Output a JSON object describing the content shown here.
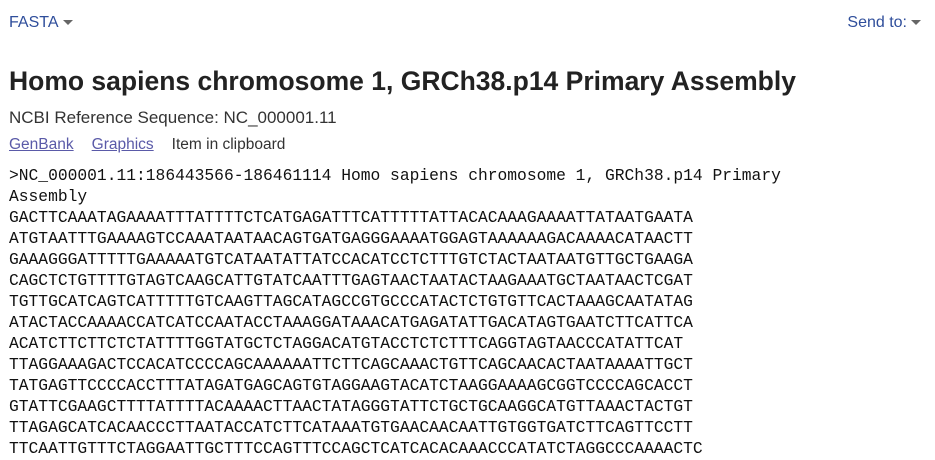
{
  "toolbar": {
    "format": "FASTA",
    "send_to": "Send to:"
  },
  "header": {
    "title": "Homo sapiens chromosome 1, GRCh38.p14 Primary Assembly",
    "subtitle": "NCBI Reference Sequence: NC_000001.11",
    "links": [
      "GenBank",
      "Graphics"
    ],
    "clipboard": "Item in clipboard"
  },
  "sequence": {
    "header": ">NC_000001.11:186443566-186461114 Homo sapiens chromosome 1, GRCh38.p14 Primary Assembly",
    "lines": [
      "GACTTCAAATAGAAAATTTATTTTCTCATGAGATTTCATTTTTATTACACAAAGAAAATTATAATGAATA",
      "ATGTAATTTGAAAAGTCCAAATAATAACAGTGATGAGGGAAAATGGAGTAAAAAAGACAAAACATAACTT",
      "GAAAGGGATTTTTGAAAAATGTCATAATATTATCCACATCCTCTTTGTCTACTAATAATGTTGCTGAAGA",
      "CAGCTCTGTTTTGTAGTCAAGCATTGTATCAATTTGAGTAACTAATACTAAGAAATGCTAATAACTCGAT",
      "TGTTGCATCAGTCATTTTTGTCAAGTTAGCATAGCCGTGCCCATACTCTGTGTTCACTAAAGCAATATAG",
      "ATACTACCAAAACCATCATCCAATACCTAAAGGATAAACATGAGATATTGACATAGTGAATCTTCATTCA",
      "ACATCTTCTTCTCTATTTTGGTATGCTCTAGGACATGTACCTCTCTTTCAGGTAGTAACCCATATTCAT",
      "TTAGGAAAGACTCCACATCCCCAGCAAAAAATTCTTCAGCAAACTGTTCAGCAACACTAATAAAATTGCT",
      "TATGAGTTCCCCACCTTTATAGATGAGCAGTGTAGGAAGTACATCTAAGGAAAAGCGGTCCCCAGCACCT",
      "GTATTCGAAGCTTTTATTTTACAAAACTTAACTATAGGGTATTCTGCTGCAAGGCATGTTAAACTACTGT",
      "TTAGAGCATCACAACCCTTAATACCATCTTCATAAATGTGAACAACAATTGTGGTGATCTTCAGTTCCTT",
      "TTCAATTGTTTCTAGGAATTGCTTTCCAGTTTCCAGCTCATCACACAAACCCATATCTAGGCCCAAAACTC"
    ]
  }
}
